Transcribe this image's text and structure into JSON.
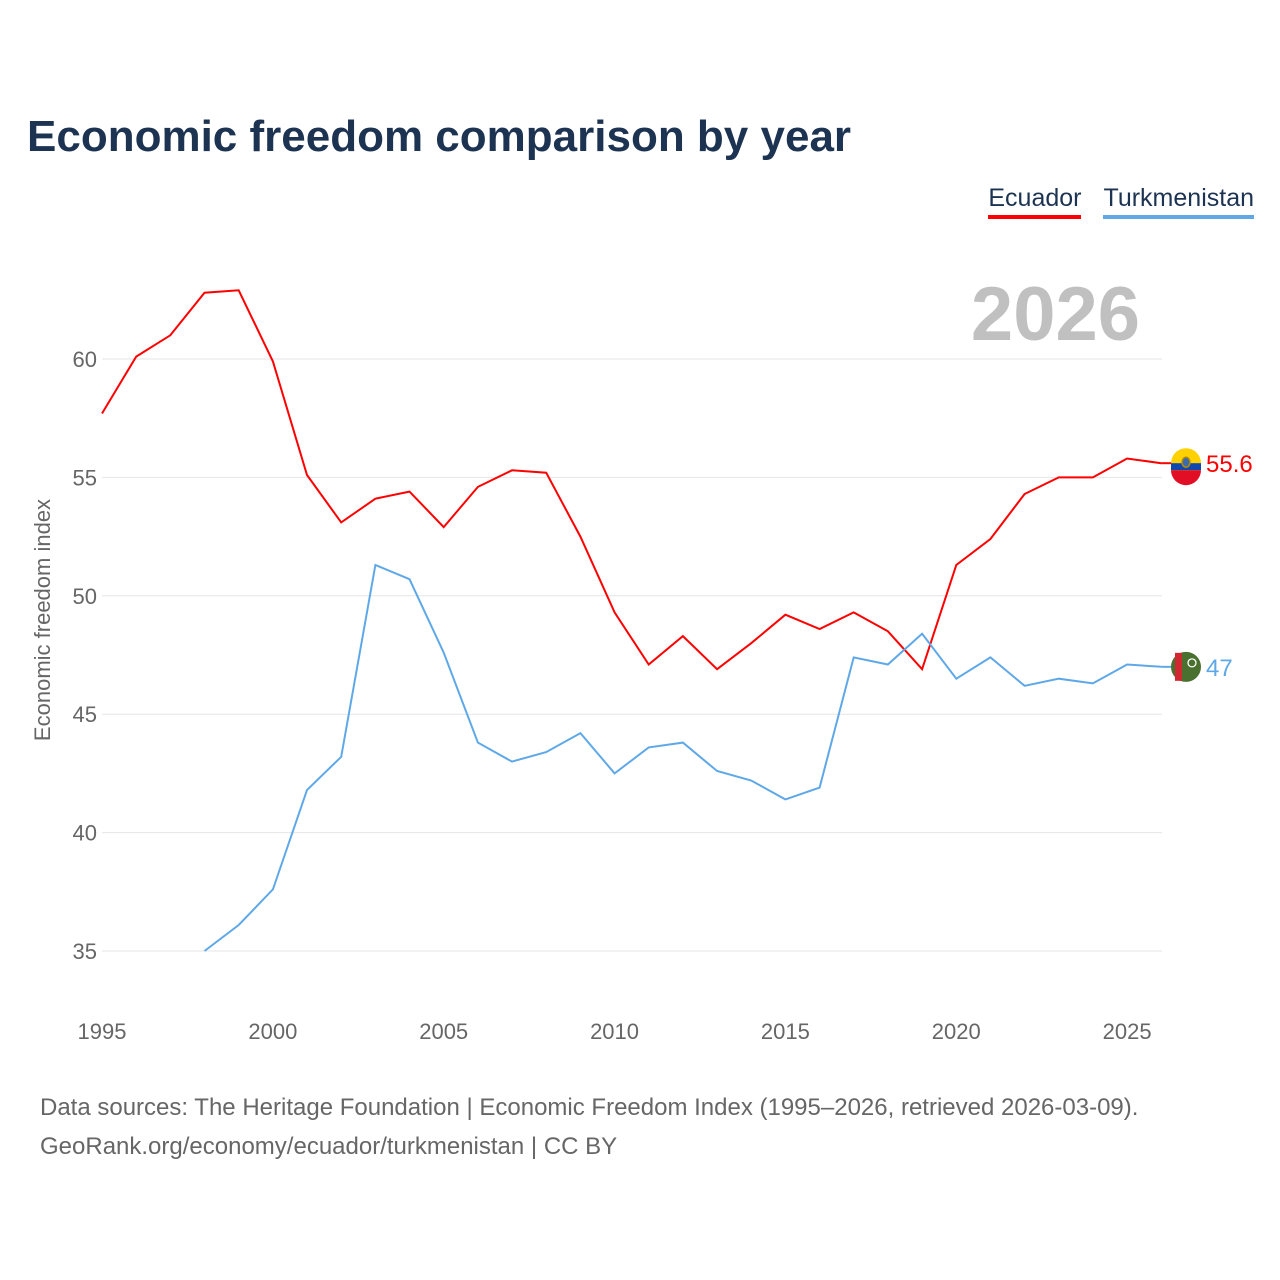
{
  "chart_data": {
    "type": "line",
    "title": "Economic freedom comparison by year",
    "xlabel": "",
    "ylabel": "Economic freedom index",
    "xlim": [
      1995,
      2026
    ],
    "ylim": [
      33,
      63.5
    ],
    "xticks": [
      1995,
      2000,
      2005,
      2010,
      2015,
      2020,
      2025
    ],
    "yticks": [
      35,
      40,
      45,
      50,
      55,
      60
    ],
    "grid": true,
    "legend_position": "top-right",
    "year_label": "2026",
    "series": [
      {
        "name": "Ecuador",
        "color": "#ff0000",
        "end_label": "55.6",
        "x": [
          1995,
          1996,
          1997,
          1998,
          1999,
          2000,
          2001,
          2002,
          2003,
          2004,
          2005,
          2006,
          2007,
          2008,
          2009,
          2010,
          2011,
          2012,
          2013,
          2014,
          2015,
          2016,
          2017,
          2018,
          2019,
          2020,
          2021,
          2022,
          2023,
          2024,
          2025,
          2026
        ],
        "values": [
          57.7,
          60.1,
          61.0,
          62.8,
          62.9,
          59.9,
          55.1,
          53.1,
          54.1,
          54.4,
          52.9,
          54.6,
          55.3,
          55.2,
          52.5,
          49.3,
          47.1,
          48.3,
          46.9,
          48.0,
          49.2,
          48.6,
          49.3,
          48.5,
          46.9,
          51.3,
          52.4,
          54.3,
          55.0,
          55.0,
          55.8,
          55.6
        ]
      },
      {
        "name": "Turkmenistan",
        "color": "#5fa8e8",
        "end_label": "47",
        "x": [
          1998,
          1999,
          2000,
          2001,
          2002,
          2003,
          2004,
          2005,
          2006,
          2007,
          2008,
          2009,
          2010,
          2011,
          2012,
          2013,
          2014,
          2015,
          2016,
          2017,
          2018,
          2019,
          2020,
          2021,
          2022,
          2023,
          2024,
          2025,
          2026
        ],
        "values": [
          35.0,
          36.1,
          37.6,
          41.8,
          43.2,
          51.3,
          50.7,
          47.6,
          43.8,
          43.0,
          43.4,
          44.2,
          42.5,
          43.6,
          43.8,
          42.6,
          42.2,
          41.4,
          41.9,
          47.4,
          47.1,
          48.4,
          46.5,
          47.4,
          46.2,
          46.5,
          46.3,
          47.1,
          47.0
        ]
      }
    ]
  },
  "source": {
    "line1": "Data sources: The Heritage Foundation | Economic Freedom Index (1995–2026, retrieved 2026-03-09).",
    "line2": "GeoRank.org/economy/ecuador/turkmenistan | CC BY"
  }
}
